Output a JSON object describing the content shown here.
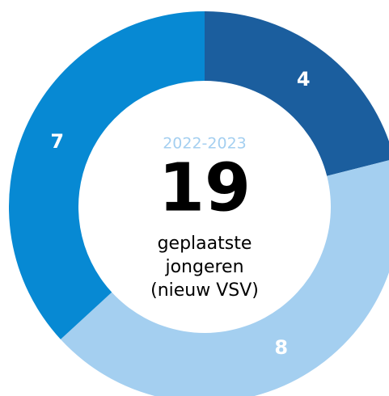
{
  "chart_data": {
    "type": "donut",
    "categories": [
      null,
      null,
      null
    ],
    "values": [
      4,
      8,
      7
    ],
    "colors": [
      "#1b5e9e",
      "#a4cff0",
      "#0789d3"
    ],
    "center_title": "2022-2023",
    "center_value": 19,
    "center_lines": [
      "geplaatste",
      "jongeren",
      "(nieuw VSV)"
    ]
  }
}
